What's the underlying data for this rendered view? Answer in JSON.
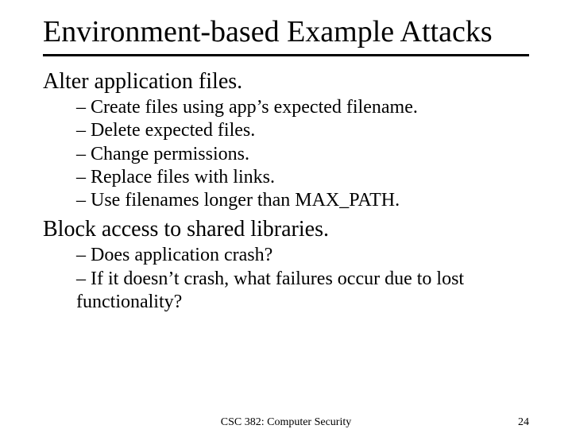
{
  "title": "Environment-based Example Attacks",
  "sections": [
    {
      "heading": "Alter application files.",
      "items": [
        "Create files using app’s expected filename.",
        "Delete expected files.",
        "Change permissions.",
        "Replace files with links.",
        "Use filenames longer than MAX_PATH."
      ]
    },
    {
      "heading": "Block access to shared libraries.",
      "items": [
        "Does application crash?",
        "If it doesn’t crash, what failures occur due to lost functionality?"
      ]
    }
  ],
  "footer": {
    "course": "CSC 382: Computer Security",
    "page": "24"
  },
  "colors": {
    "background": "#ffffff",
    "text": "#000000",
    "rule": "#000000"
  },
  "typography": {
    "title_fontsize": 38,
    "lvl1_fontsize": 28,
    "lvl2_fontsize": 24,
    "footer_fontsize": 14,
    "font_family": "Times New Roman"
  }
}
